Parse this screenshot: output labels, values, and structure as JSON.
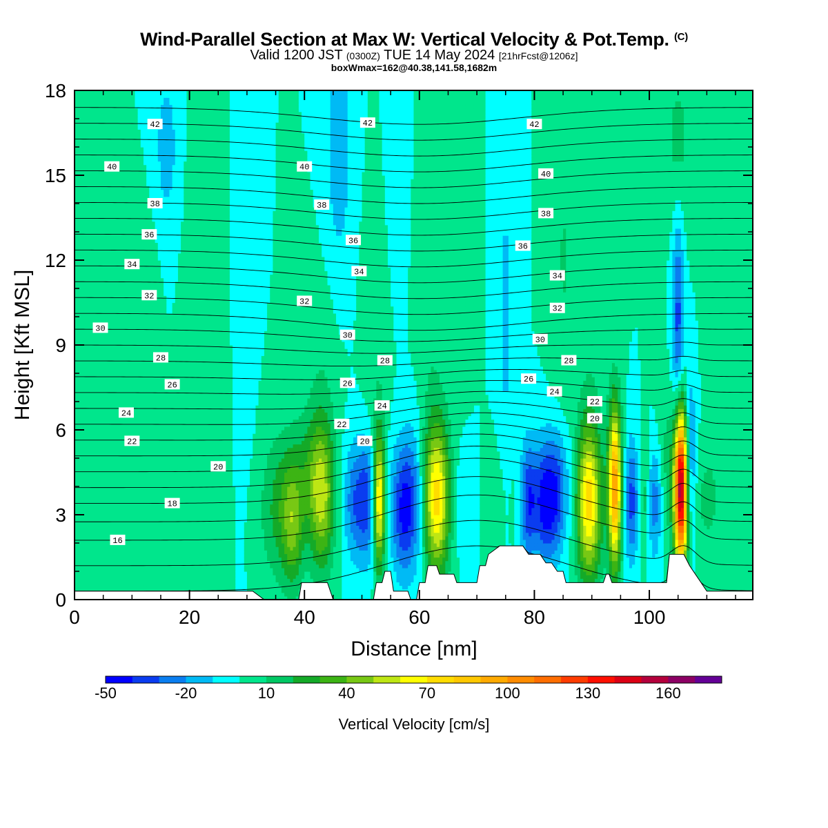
{
  "header": {
    "title": "Wind-Parallel Section at Max W: Vertical Velocity & Pot.Temp.",
    "title_mark": "(C)",
    "valid_prefix": "Valid 1200 JST",
    "valid_utc": "(0300Z)",
    "valid_date": "TUE 14 May 2024",
    "forecast_info": "[21hrFcst@1206z]",
    "box_info": "boxWmax=162@40.38,141.58,1682m"
  },
  "chart_data": {
    "type": "heatmap",
    "xlabel": "Distance [nm]",
    "ylabel": "Height [Kft MSL]",
    "xlim": [
      0,
      118
    ],
    "ylim": [
      0,
      18
    ],
    "x_ticks": [
      "0",
      "20",
      "40",
      "60",
      "80",
      "100"
    ],
    "y_ticks": [
      "0",
      "3",
      "6",
      "9",
      "12",
      "15",
      "18"
    ],
    "colorbar": {
      "label": "Vertical Velocity [cm/s]",
      "tick_labels": [
        "-50",
        "-20",
        "10",
        "40",
        "70",
        "100",
        "130",
        "160"
      ],
      "levels": [
        -50,
        -40,
        -30,
        -20,
        -10,
        0,
        10,
        20,
        30,
        40,
        50,
        60,
        70,
        80,
        90,
        100,
        110,
        120,
        130,
        140,
        150,
        160,
        170,
        180
      ],
      "colors": [
        "#0000ff",
        "#0a3cf0",
        "#0a7ef0",
        "#00baf5",
        "#00ffff",
        "#00e68c",
        "#00c864",
        "#14aa28",
        "#3cb414",
        "#78c814",
        "#bee614",
        "#ffff00",
        "#ffdc00",
        "#ffc800",
        "#ffaa00",
        "#ff8c00",
        "#ff6e00",
        "#ff3c00",
        "#ff0f00",
        "#dc0014",
        "#b4003c",
        "#8c0064",
        "#640096"
      ]
    },
    "background_w": 0,
    "w_features": [
      {
        "x": 5,
        "z": 10,
        "dx": 1.5,
        "dz": 4,
        "w": 8
      },
      {
        "x": 13,
        "z": 9,
        "dx": 1.2,
        "dz": 3,
        "w": 7
      },
      {
        "x": 16,
        "z": 16,
        "dx": 1.5,
        "dz": 2,
        "w": -15
      },
      {
        "x": 22,
        "z": 9,
        "dx": 1.8,
        "dz": 6,
        "w": 8
      },
      {
        "x": 30,
        "z": 12,
        "dx": 1,
        "dz": 5,
        "w": -6
      },
      {
        "x": 36,
        "z": 3.2,
        "dx": 2.5,
        "dz": 1.8,
        "w": 25
      },
      {
        "x": 38,
        "z": 2.5,
        "dx": 1.2,
        "dz": 1.5,
        "w": 28
      },
      {
        "x": 43,
        "z": 3.5,
        "dx": 1.5,
        "dz": 1.8,
        "w": 45
      },
      {
        "x": 41,
        "z": 4.5,
        "dx": 2.5,
        "dz": 1.5,
        "w": 18
      },
      {
        "x": 43,
        "z": 7.5,
        "dx": 2,
        "dz": 2.5,
        "w": 8
      },
      {
        "x": 46,
        "z": 16,
        "dx": 1.5,
        "dz": 3,
        "w": -18
      },
      {
        "x": 49,
        "z": 3.5,
        "dx": 1.5,
        "dz": 1.5,
        "w": -30
      },
      {
        "x": 51,
        "z": 3.5,
        "dx": 1,
        "dz": 1.5,
        "w": -25
      },
      {
        "x": 53,
        "z": 3.5,
        "dx": 0.7,
        "dz": 1.7,
        "w": 72
      },
      {
        "x": 52.5,
        "z": 9,
        "dx": 1.5,
        "dz": 3,
        "w": 8
      },
      {
        "x": 56,
        "z": 16,
        "dx": 1,
        "dz": 3,
        "w": -10
      },
      {
        "x": 57,
        "z": 3.2,
        "dx": 1.5,
        "dz": 1.6,
        "w": -35
      },
      {
        "x": 59,
        "z": 3.5,
        "dx": 1.5,
        "dz": 1.8,
        "w": -22
      },
      {
        "x": 63,
        "z": 3.6,
        "dx": 1.6,
        "dz": 1.9,
        "w": 75
      },
      {
        "x": 62,
        "z": 10,
        "dx": 1.5,
        "dz": 3,
        "w": 8
      },
      {
        "x": 68,
        "z": 3.5,
        "dx": 2,
        "dz": 1.5,
        "w": -8
      },
      {
        "x": 67,
        "z": 13,
        "dx": 1.5,
        "dz": 3.5,
        "w": 10
      },
      {
        "x": 73,
        "z": 3.5,
        "dx": 1.5,
        "dz": 1.5,
        "w": 10
      },
      {
        "x": 75,
        "z": 10,
        "dx": 1.2,
        "dz": 5,
        "w": -12
      },
      {
        "x": 77,
        "z": 3.5,
        "dx": 1,
        "dz": 1.5,
        "w": 8
      },
      {
        "x": 79,
        "z": 3.5,
        "dx": 1.2,
        "dz": 1.5,
        "w": -40
      },
      {
        "x": 82,
        "z": 3.5,
        "dx": 1.2,
        "dz": 1.5,
        "w": -45
      },
      {
        "x": 84,
        "z": 3.8,
        "dx": 1,
        "dz": 1.5,
        "w": -30
      },
      {
        "x": 86,
        "z": 4,
        "dx": 1,
        "dz": 1.5,
        "w": -10
      },
      {
        "x": 85,
        "z": 12,
        "dx": 1.5,
        "dz": 4,
        "w": 10
      },
      {
        "x": 89.5,
        "z": 3.5,
        "dx": 1.5,
        "dz": 2,
        "w": 75
      },
      {
        "x": 90,
        "z": 12,
        "dx": 2,
        "dz": 3,
        "w": 10
      },
      {
        "x": 94,
        "z": 4,
        "dx": 0.8,
        "dz": 2,
        "w": 100
      },
      {
        "x": 97,
        "z": 3.5,
        "dx": 1,
        "dz": 1.5,
        "w": -35
      },
      {
        "x": 99,
        "z": 3.5,
        "dx": 0.8,
        "dz": 1.5,
        "w": 20
      },
      {
        "x": 101,
        "z": 3.5,
        "dx": 1,
        "dz": 1.5,
        "w": -30
      },
      {
        "x": 103,
        "z": 4.5,
        "dx": 1.5,
        "dz": 2,
        "w": 15
      },
      {
        "x": 105.5,
        "z": 4,
        "dx": 0.8,
        "dz": 2,
        "w": 162
      },
      {
        "x": 105,
        "z": 9.5,
        "dx": 0.7,
        "dz": 3,
        "w": -35
      },
      {
        "x": 105,
        "z": 16,
        "dx": 1.5,
        "dz": 2,
        "w": 15
      },
      {
        "x": 107,
        "z": 5,
        "dx": 0.8,
        "dz": 2,
        "w": -30
      },
      {
        "x": 112,
        "z": 10,
        "dx": 1.5,
        "dz": 3,
        "w": 10
      },
      {
        "x": 110,
        "z": 3.5,
        "dx": 2,
        "dz": 1.5,
        "w": 12
      }
    ],
    "terrain": [
      [
        0,
        0.3
      ],
      [
        31,
        0.3
      ],
      [
        33,
        0
      ],
      [
        39,
        0
      ],
      [
        39.5,
        0.6
      ],
      [
        44,
        0.6
      ],
      [
        45,
        0
      ],
      [
        52,
        0
      ],
      [
        52.5,
        0.6
      ],
      [
        53.5,
        0.6
      ],
      [
        54,
        1
      ],
      [
        55,
        1
      ],
      [
        55.5,
        0.3
      ],
      [
        58,
        0.3
      ],
      [
        58.5,
        0
      ],
      [
        59.5,
        0
      ],
      [
        60,
        0.6
      ],
      [
        61,
        0.6
      ],
      [
        61.5,
        1.2
      ],
      [
        63,
        1.2
      ],
      [
        63.5,
        0.9
      ],
      [
        66,
        0.9
      ],
      [
        66.5,
        0.6
      ],
      [
        70,
        0.6
      ],
      [
        70.5,
        1.2
      ],
      [
        71.5,
        1.2
      ],
      [
        72,
        1.6
      ],
      [
        74,
        1.9
      ],
      [
        78,
        1.9
      ],
      [
        79,
        1.6
      ],
      [
        81,
        1.6
      ],
      [
        82,
        1.3
      ],
      [
        83,
        1.3
      ],
      [
        84,
        1
      ],
      [
        85,
        1
      ],
      [
        85.5,
        0.6
      ],
      [
        92,
        0.6
      ],
      [
        92.5,
        0.9
      ],
      [
        93,
        0.9
      ],
      [
        93.5,
        0.6
      ],
      [
        103,
        0.6
      ],
      [
        103.5,
        1.6
      ],
      [
        106,
        1.6
      ],
      [
        107,
        1.2
      ],
      [
        108,
        0.9
      ],
      [
        109,
        0.6
      ],
      [
        110,
        0.3
      ],
      [
        118,
        0.3
      ]
    ],
    "theta_levels": [
      14,
      15,
      16,
      17,
      18,
      19,
      20,
      21,
      22,
      23,
      24,
      25,
      26,
      27,
      28,
      29,
      30,
      31,
      32,
      33,
      34,
      35,
      36,
      37,
      38,
      39,
      40,
      41,
      42,
      43
    ],
    "theta_labels": [
      {
        "text": "42",
        "x": 14,
        "z": 16.8
      },
      {
        "text": "42",
        "x": 51,
        "z": 16.85
      },
      {
        "text": "42",
        "x": 80,
        "z": 16.8
      },
      {
        "text": "40",
        "x": 6.5,
        "z": 15.3
      },
      {
        "text": "40",
        "x": 40,
        "z": 15.3
      },
      {
        "text": "40",
        "x": 82,
        "z": 15.05
      },
      {
        "text": "38",
        "x": 14,
        "z": 14.0
      },
      {
        "text": "38",
        "x": 43,
        "z": 13.95
      },
      {
        "text": "38",
        "x": 82,
        "z": 13.65
      },
      {
        "text": "36",
        "x": 13,
        "z": 12.9
      },
      {
        "text": "36",
        "x": 48.5,
        "z": 12.7
      },
      {
        "text": "36",
        "x": 78,
        "z": 12.5
      },
      {
        "text": "34",
        "x": 10,
        "z": 11.85
      },
      {
        "text": "34",
        "x": 49.5,
        "z": 11.6
      },
      {
        "text": "34",
        "x": 84,
        "z": 11.45
      },
      {
        "text": "32",
        "x": 13,
        "z": 10.75
      },
      {
        "text": "32",
        "x": 40,
        "z": 10.55
      },
      {
        "text": "32",
        "x": 84,
        "z": 10.3
      },
      {
        "text": "30",
        "x": 4.5,
        "z": 9.6
      },
      {
        "text": "30",
        "x": 47.5,
        "z": 9.35
      },
      {
        "text": "30",
        "x": 81,
        "z": 9.2
      },
      {
        "text": "28",
        "x": 15,
        "z": 8.55
      },
      {
        "text": "28",
        "x": 54,
        "z": 8.45
      },
      {
        "text": "28",
        "x": 86,
        "z": 8.45
      },
      {
        "text": "26",
        "x": 17,
        "z": 7.6
      },
      {
        "text": "26",
        "x": 47.5,
        "z": 7.65
      },
      {
        "text": "26",
        "x": 79,
        "z": 7.8
      },
      {
        "text": "24",
        "x": 9,
        "z": 6.6
      },
      {
        "text": "24",
        "x": 53.5,
        "z": 6.85
      },
      {
        "text": "24",
        "x": 83.5,
        "z": 7.35
      },
      {
        "text": "22",
        "x": 10,
        "z": 5.6
      },
      {
        "text": "22",
        "x": 46.5,
        "z": 6.2
      },
      {
        "text": "22",
        "x": 90.5,
        "z": 7.0
      },
      {
        "text": "20",
        "x": 25,
        "z": 4.7
      },
      {
        "text": "20",
        "x": 50.5,
        "z": 5.6
      },
      {
        "text": "20",
        "x": 90.5,
        "z": 6.4
      },
      {
        "text": "18",
        "x": 17,
        "z": 3.4
      },
      {
        "text": "16",
        "x": 7.5,
        "z": 2.1
      }
    ]
  }
}
